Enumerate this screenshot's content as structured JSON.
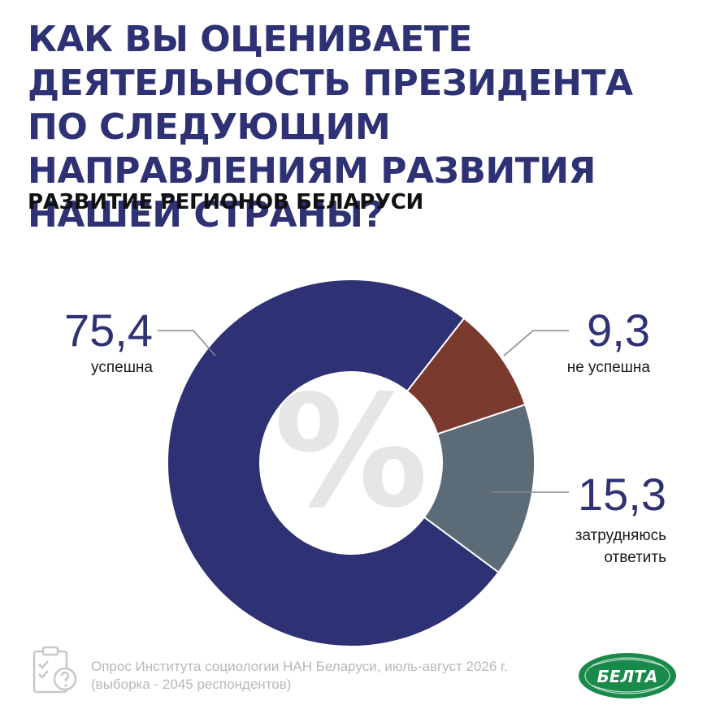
{
  "title": "КАК ВЫ ОЦЕНИВАЕТЕ ДЕЯТЕЛЬНОСТЬ ПРЕЗИДЕНТА ПО СЛЕДУЮЩИМ НАПРАВЛЕНИЯМ РАЗВИТИЯ НАШЕЙ СТРАНЫ?",
  "subtitle": "РАЗВИТИЕ РЕГИОНОВ БЕЛАРУСИ",
  "chart_data": {
    "type": "pie",
    "donut": true,
    "center_symbol": "%",
    "slices": [
      {
        "label": "успешна",
        "value": 75.4,
        "display": "75,4",
        "color": "#2e3274"
      },
      {
        "label": "не успешна",
        "value": 9.3,
        "display": "9,3",
        "color": "#7b3a2e"
      },
      {
        "label": "затрудняюсь ответить",
        "value": 15.3,
        "display": "15,3",
        "color": "#5b6b78"
      }
    ]
  },
  "footer": {
    "line1": "Опрос Института социологии НАН Беларуси, июль-август 2026 г.",
    "line2": "(выборка - 2045 респондентов)",
    "icon": "clipboard-question-icon"
  },
  "logo": {
    "text": "БЕЛТА",
    "color": "#1a8a4a"
  }
}
